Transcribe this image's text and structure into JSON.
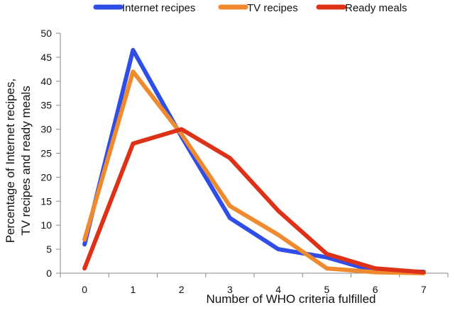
{
  "chart_data": {
    "type": "line",
    "title": "",
    "xlabel": "Number of WHO criteria fulfilled",
    "ylabel_lines": [
      "Percentage of Internet recipes,",
      "TV recipes and ready meals"
    ],
    "x": [
      0,
      1,
      2,
      3,
      4,
      5,
      6,
      7
    ],
    "xlim": [
      0,
      7
    ],
    "ylim": [
      0,
      50
    ],
    "yticks": [
      0,
      5,
      10,
      15,
      20,
      25,
      30,
      35,
      40,
      45,
      50
    ],
    "grid": false,
    "legend_position": "top",
    "series": [
      {
        "name": "Internet recipes",
        "color": "#2f4ee8",
        "values": [
          6,
          46.5,
          28.5,
          11.5,
          5,
          3.3,
          0.4,
          0.3
        ]
      },
      {
        "name": "TV recipes",
        "color": "#ef8a2e",
        "values": [
          7,
          42,
          29,
          14,
          8,
          1,
          0.2,
          0
        ]
      },
      {
        "name": "Ready meals",
        "color": "#dd3217",
        "values": [
          1,
          27,
          30,
          24,
          13,
          4,
          1,
          0.2
        ]
      }
    ]
  }
}
